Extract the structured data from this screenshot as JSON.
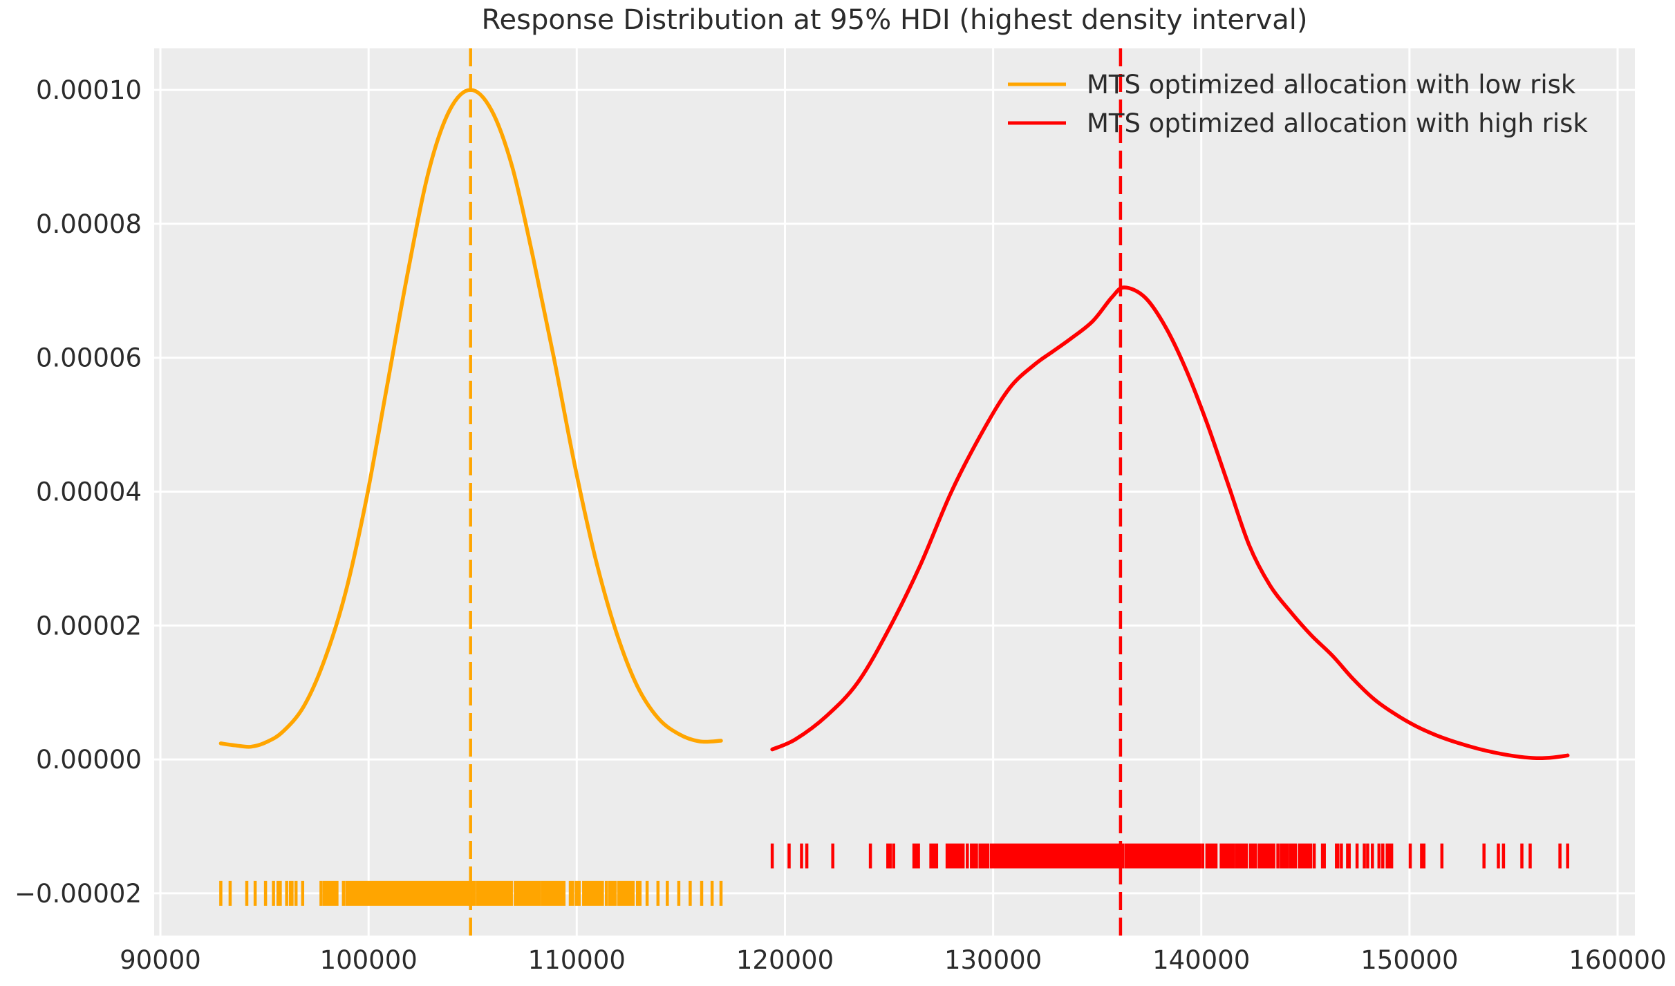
{
  "chart_data": {
    "type": "line",
    "variant": "kde-density",
    "title": "Response Distribution at 95% HDI (highest density interval)",
    "xlabel": "",
    "ylabel": "",
    "grid": true,
    "legend_position": "upper right",
    "background_color": "#ececec",
    "grid_color": "#ffffff",
    "text_color": "#2b2b2b",
    "xlim": [
      89700,
      160830
    ],
    "ylim": [
      -2.63e-05,
      0.0001062
    ],
    "x_ticks": [
      {
        "value": 90000,
        "label": "90000"
      },
      {
        "value": 100000,
        "label": "100000"
      },
      {
        "value": 110000,
        "label": "110000"
      },
      {
        "value": 120000,
        "label": "120000"
      },
      {
        "value": 130000,
        "label": "130000"
      },
      {
        "value": 140000,
        "label": "140000"
      },
      {
        "value": 150000,
        "label": "150000"
      },
      {
        "value": 160000,
        "label": "160000"
      }
    ],
    "y_ticks": [
      {
        "value": 0.0001,
        "label": "0.00010"
      },
      {
        "value": 8e-05,
        "label": "0.00008"
      },
      {
        "value": 6e-05,
        "label": "0.00006"
      },
      {
        "value": 4e-05,
        "label": "0.00004"
      },
      {
        "value": 2e-05,
        "label": "0.00002"
      },
      {
        "value": 0.0,
        "label": "0.00000"
      },
      {
        "value": -2e-05,
        "label": "−0.00002"
      }
    ],
    "series": [
      {
        "name": "MTS optimized allocation with low risk",
        "color": "#FFA500",
        "mean_line": 104900,
        "mean_line_style": "dashed",
        "peak_density": 0.0001,
        "points": [
          [
            92900,
            2.4e-06
          ],
          [
            93600,
            2.1e-06
          ],
          [
            94350,
            1.9e-06
          ],
          [
            95100,
            2.6e-06
          ],
          [
            95900,
            4.2e-06
          ],
          [
            96900,
            8e-06
          ],
          [
            97900,
            1.5e-05
          ],
          [
            98900,
            2.5e-05
          ],
          [
            99900,
            3.9e-05
          ],
          [
            100900,
            5.6e-05
          ],
          [
            101900,
            7.3e-05
          ],
          [
            102900,
            8.8e-05
          ],
          [
            103900,
            9.7e-05
          ],
          [
            104900,
            0.0001
          ],
          [
            105900,
            9.7e-05
          ],
          [
            106900,
            8.85e-05
          ],
          [
            107900,
            7.5e-05
          ],
          [
            108900,
            6e-05
          ],
          [
            109900,
            4.4e-05
          ],
          [
            110900,
            3e-05
          ],
          [
            111900,
            1.9e-05
          ],
          [
            112900,
            1.1e-05
          ],
          [
            113900,
            6.2e-06
          ],
          [
            114900,
            3.8e-06
          ],
          [
            115900,
            2.7e-06
          ],
          [
            116930,
            2.8e-06
          ]
        ]
      },
      {
        "name": "MTS optimized allocation with high risk",
        "color": "#FF0000",
        "mean_line": 136120,
        "mean_line_style": "dashed",
        "peak_density": 7.05e-05,
        "points": [
          [
            119390,
            1.5e-06
          ],
          [
            120500,
            3e-06
          ],
          [
            122000,
            6.5e-06
          ],
          [
            123500,
            1.15e-05
          ],
          [
            125000,
            1.95e-05
          ],
          [
            126500,
            2.9e-05
          ],
          [
            128000,
            4e-05
          ],
          [
            129500,
            4.9e-05
          ],
          [
            130800,
            5.55e-05
          ],
          [
            132000,
            5.9e-05
          ],
          [
            132900,
            6.1e-05
          ],
          [
            133800,
            6.3e-05
          ],
          [
            134800,
            6.55e-05
          ],
          [
            135700,
            6.9e-05
          ],
          [
            136300,
            7.05e-05
          ],
          [
            137300,
            6.9e-05
          ],
          [
            138300,
            6.45e-05
          ],
          [
            139300,
            5.8e-05
          ],
          [
            140300,
            5e-05
          ],
          [
            141300,
            4.1e-05
          ],
          [
            142300,
            3.2e-05
          ],
          [
            143300,
            2.6e-05
          ],
          [
            144300,
            2.2e-05
          ],
          [
            145300,
            1.85e-05
          ],
          [
            146300,
            1.55e-05
          ],
          [
            147300,
            1.2e-05
          ],
          [
            148300,
            9e-06
          ],
          [
            149300,
            6.8e-06
          ],
          [
            150300,
            5e-06
          ],
          [
            151300,
            3.6e-06
          ],
          [
            152300,
            2.5e-06
          ],
          [
            153300,
            1.6e-06
          ],
          [
            154300,
            9e-07
          ],
          [
            155300,
            4e-07
          ],
          [
            156100,
            2e-07
          ],
          [
            156900,
            3e-07
          ],
          [
            157600,
            6e-07
          ]
        ]
      }
    ],
    "rugs": [
      {
        "series": "MTS optimized allocation with low risk",
        "color": "#FFA500",
        "y_value": -2e-05,
        "n": 380,
        "mean": 104900,
        "sd": 3900,
        "clip": [
          95200,
          113600
        ],
        "outliers": [
          92900,
          93350,
          94150,
          94550,
          95050,
          95650,
          96250,
          113900,
          114350,
          114900,
          115450,
          116000,
          116500,
          116930
        ]
      },
      {
        "series": "MTS optimized allocation with high risk",
        "color": "#FF0000",
        "y_value": -1.44e-05,
        "n": 460,
        "mix": [
          {
            "w": 0.78,
            "mean": 135100,
            "sd": 4100
          },
          {
            "w": 0.22,
            "mean": 143200,
            "sd": 5200
          }
        ],
        "clip": [
          121300,
          155100
        ],
        "outliers": [
          119390,
          120200,
          120800,
          121050,
          122300,
          155400,
          155800,
          157230,
          157600
        ]
      }
    ]
  },
  "legend": {
    "entries": [
      {
        "label": "MTS optimized allocation with low risk",
        "color": "#FFA500"
      },
      {
        "label": "MTS optimized allocation with high risk",
        "color": "#FF0000"
      }
    ]
  }
}
